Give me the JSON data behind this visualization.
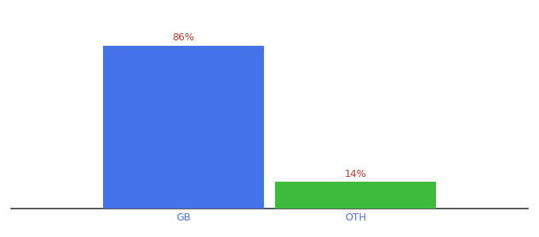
{
  "categories": [
    "GB",
    "OTH"
  ],
  "values": [
    86,
    14
  ],
  "bar_colors": [
    "#4472e8",
    "#3dbb3d"
  ],
  "label_color": "#c0392b",
  "tick_color": "#4472e8",
  "background_color": "#ffffff",
  "ylim": [
    0,
    100
  ],
  "bar_width": 0.28,
  "label_fontsize": 9,
  "tick_fontsize": 9,
  "x_positions": [
    0.35,
    0.65
  ]
}
